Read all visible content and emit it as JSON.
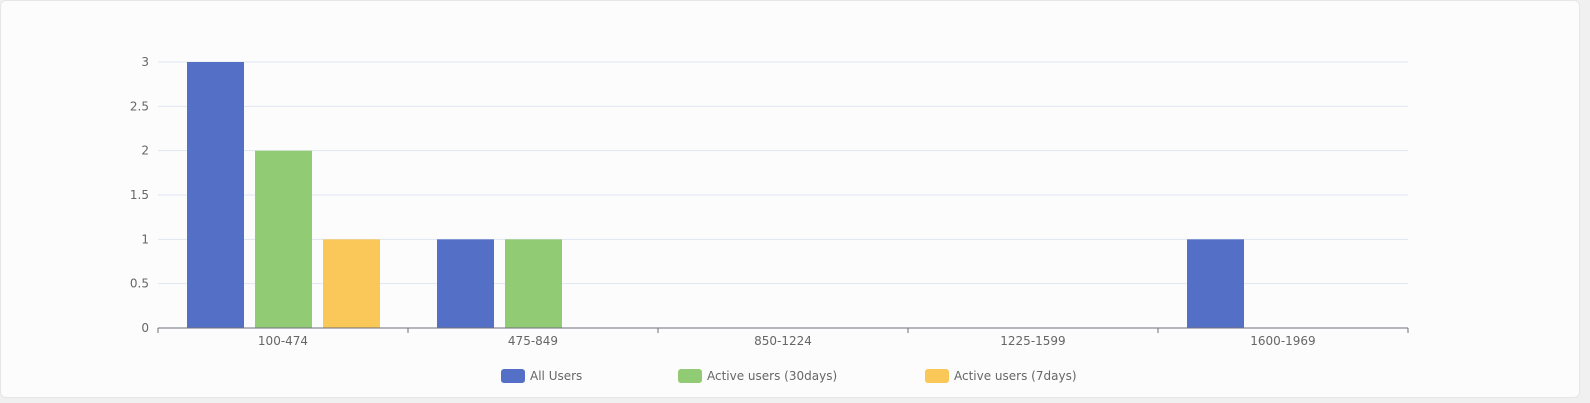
{
  "chart_data": {
    "type": "bar",
    "categories": [
      "100-474",
      "475-849",
      "850-1224",
      "1225-1599",
      "1600-1969"
    ],
    "series": [
      {
        "name": "All Users",
        "values": [
          3,
          1,
          0,
          0,
          1
        ],
        "color": "#5470c6"
      },
      {
        "name": "Active users (30days)",
        "values": [
          2,
          1,
          0,
          0,
          0
        ],
        "color": "#91cc75"
      },
      {
        "name": "Active users (7days)",
        "values": [
          1,
          0,
          0,
          0,
          0
        ],
        "color": "#fac858"
      }
    ],
    "yticks": [
      "0",
      "0.5",
      "1",
      "1.5",
      "2",
      "2.5",
      "3"
    ],
    "ylim": [
      0,
      3
    ],
    "grid": true,
    "legend_position": "bottom-center"
  }
}
